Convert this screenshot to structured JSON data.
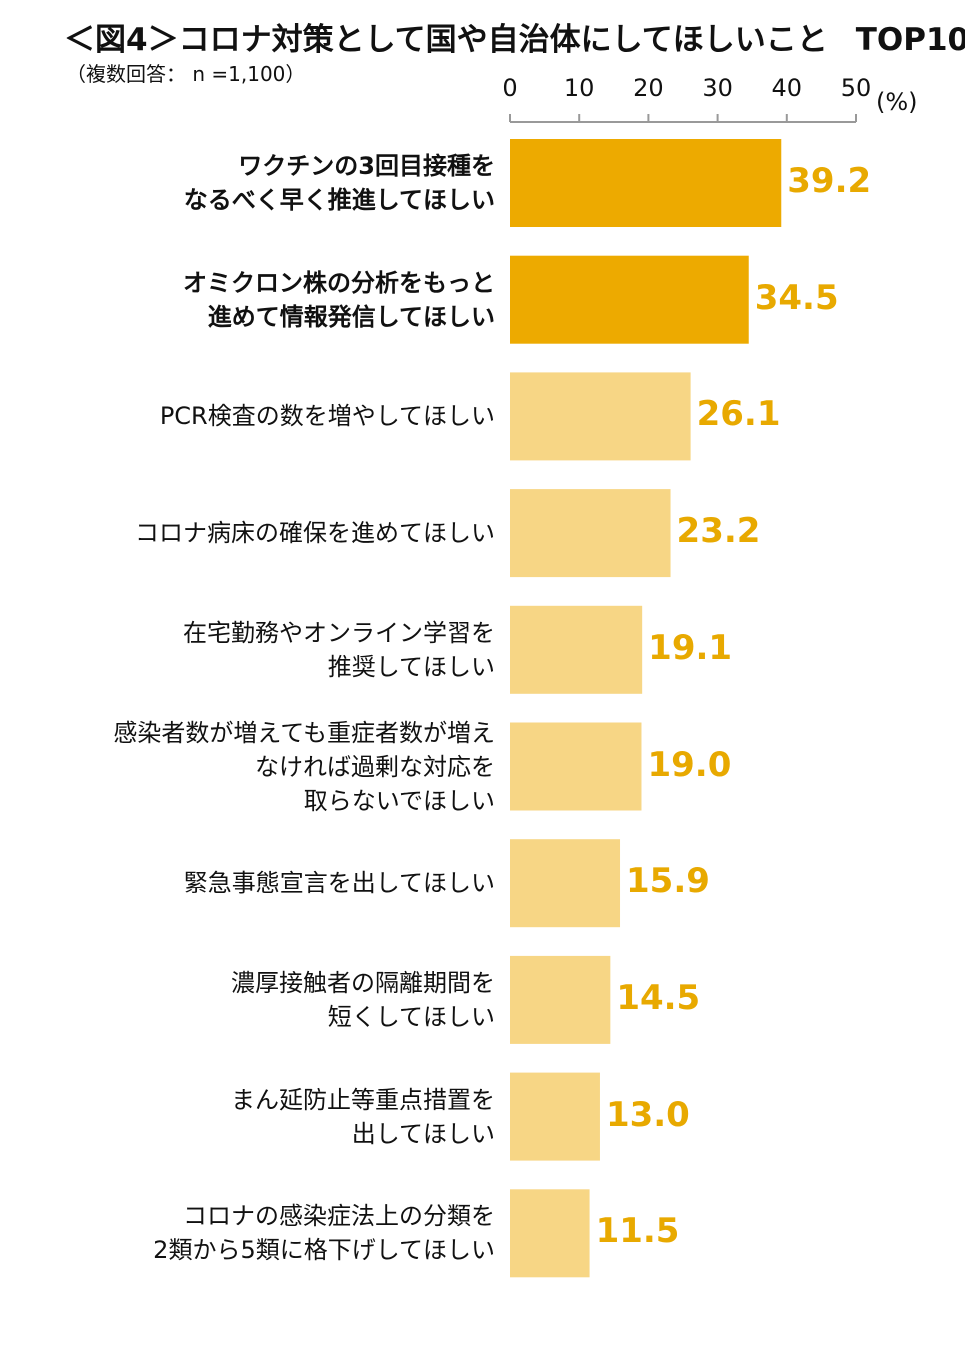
{
  "title": "＜図4＞コロナ対策として国や自治体にしてほしいこと",
  "title_suffix": "TOP10",
  "subtitle": "（複数回答： n =1,100）",
  "unit": "(%)",
  "colors": {
    "highlight": "#EDAA00",
    "normal": "#F7D685",
    "value_text": "#E8A900",
    "axis": "#999999"
  },
  "chart_data": {
    "type": "bar",
    "orientation": "horizontal",
    "title": "＜図4＞コロナ対策として国や自治体にしてほしいこと TOP10",
    "xlim": [
      0,
      50
    ],
    "ticks": [
      "0",
      "10",
      "20",
      "30",
      "40",
      "50"
    ],
    "tick_values": [
      0,
      10,
      20,
      30,
      40,
      50
    ],
    "categories": [
      [
        "ワクチンの3回目接種を",
        "なるべく早く推進してほしい"
      ],
      [
        "オミクロン株の分析をもっと",
        "進めて情報発信してほしい"
      ],
      [
        "PCR検査の数を増やしてほしい"
      ],
      [
        "コロナ病床の確保を進めてほしい"
      ],
      [
        "在宅勤務やオンライン学習を",
        "推奨してほしい"
      ],
      [
        "感染者数が増えても重症者数が増え",
        "なければ過剰な対応を",
        "取らないでほしい"
      ],
      [
        "緊急事態宣言を出してほしい"
      ],
      [
        "濃厚接触者の隔離期間を",
        "短くしてほしい"
      ],
      [
        "まん延防止等重点措置を",
        "出してほしい"
      ],
      [
        "コロナの感染症法上の分類を",
        "2類から5類に格下げしてほしい"
      ]
    ],
    "values": [
      39.2,
      34.5,
      26.1,
      23.2,
      19.1,
      19.0,
      15.9,
      14.5,
      13.0,
      11.5
    ],
    "value_labels": [
      "39.2",
      "34.5",
      "26.1",
      "23.2",
      "19.1",
      "19.0",
      "15.9",
      "14.5",
      "13.0",
      "11.5"
    ],
    "highlighted": [
      true,
      true,
      false,
      false,
      false,
      false,
      false,
      false,
      false,
      false
    ]
  }
}
